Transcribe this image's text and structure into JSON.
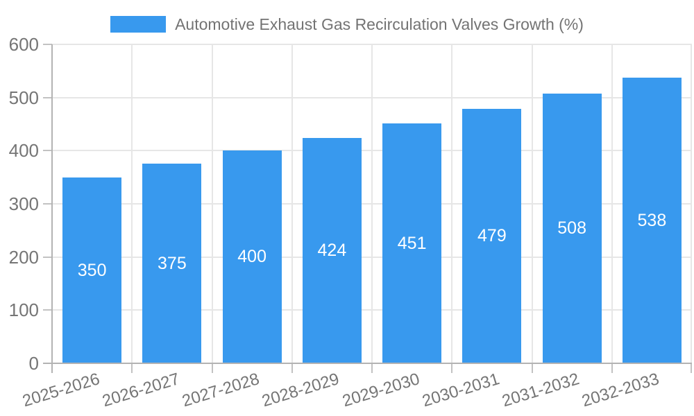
{
  "chart_data": {
    "type": "bar",
    "title": "Automotive Exhaust Gas Recirculation Valves Growth (%)",
    "categories": [
      "2025-2026",
      "2026-2027",
      "2027-2028",
      "2028-2029",
      "2029-2030",
      "2030-2031",
      "2031-2032",
      "2032-2033"
    ],
    "values": [
      350,
      375,
      400,
      424,
      451,
      479,
      508,
      538
    ],
    "value_labels": [
      "350",
      "375",
      "400",
      "424",
      "451",
      "479",
      "508",
      "538"
    ],
    "xlabel": "",
    "ylabel": "",
    "ylim": [
      0,
      600
    ],
    "y_ticks": [
      0,
      100,
      200,
      300,
      400,
      500,
      600
    ],
    "grid": true,
    "legend_position": "top"
  },
  "colors": {
    "bar": "#3899ee",
    "grid": "#e6e6e6",
    "axis": "#b3b3b3",
    "tick": "#c2c2c2",
    "tick_text": "#757575",
    "legend_text": "#737373",
    "value_text": "#ffffff",
    "background": "#ffffff"
  }
}
